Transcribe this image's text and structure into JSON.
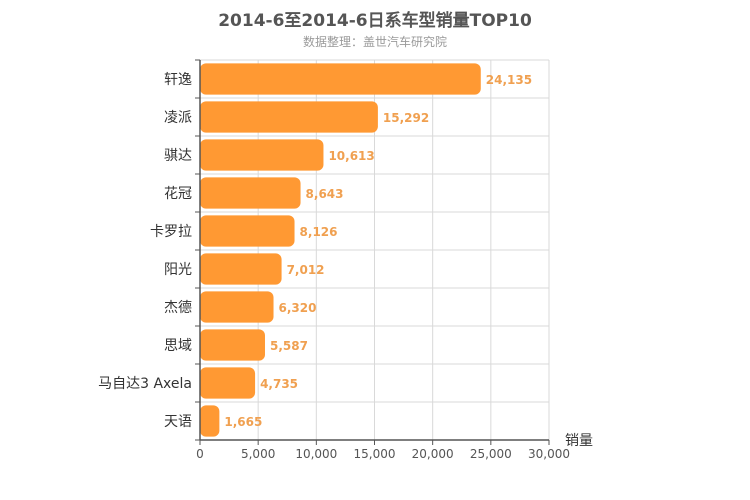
{
  "chart_data": {
    "type": "bar",
    "orientation": "horizontal",
    "title": "2014-6至2014-6日系车型销量TOP10",
    "subtitle": "数据整理：盖世汽车研究院",
    "xlabel": "销量",
    "ylabel": "",
    "categories": [
      "轩逸",
      "凌派",
      "骐达",
      "花冠",
      "卡罗拉",
      "阳光",
      "杰德",
      "思域",
      "马自达3 Axela",
      "天语"
    ],
    "values": [
      24135,
      15292,
      10613,
      8643,
      8126,
      7012,
      6320,
      5587,
      4735,
      1665
    ],
    "value_labels": [
      "24,135",
      "15,292",
      "10,613",
      "8,643",
      "8,126",
      "7,012",
      "6,320",
      "5,587",
      "4,735",
      "1,665"
    ],
    "xlim": [
      0,
      30000
    ],
    "x_ticks": [
      0,
      5000,
      10000,
      15000,
      20000,
      25000,
      30000
    ],
    "x_tick_labels": [
      "0",
      "5,000",
      "10,000",
      "15,000",
      "20,000",
      "25,000",
      "30,000"
    ],
    "grid": true,
    "legend": "none",
    "colors": {
      "bar": "#ff9933",
      "value_label": "#f0a050",
      "title": "#555555",
      "subtitle": "#9a9a9a",
      "grid": "#d9d9d9",
      "axis": "#555555"
    }
  }
}
